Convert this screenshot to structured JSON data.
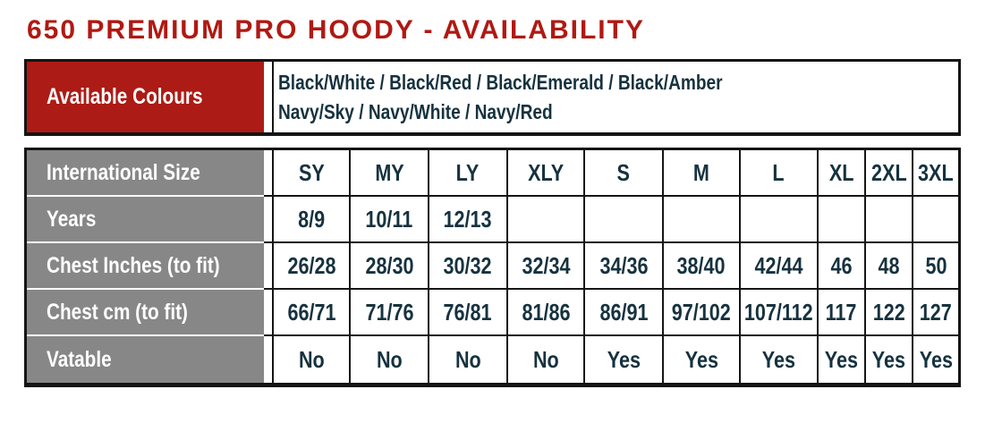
{
  "page": {
    "title": "650 PREMIUM PRO HOODY - AVAILABILITY"
  },
  "colors": {
    "title_red": "#B01912",
    "header_red": "#AC1B15",
    "label_grey": "#878787",
    "text_navy": "#16323F",
    "border_black": "#151515"
  },
  "colours_table": {
    "label": "Available Colours",
    "line1": "Black/White / Black/Red / Black/Emerald / Black/Amber",
    "line2": "Navy/Sky / Navy/White / Navy/Red"
  },
  "size_table": {
    "rows": [
      {
        "label": "International Size",
        "values": [
          "SY",
          "MY",
          "LY",
          "XLY",
          "S",
          "M",
          "L",
          "XL",
          "2XL",
          "3XL"
        ]
      },
      {
        "label": "Years",
        "values": [
          "8/9",
          "10/11",
          "12/13",
          "",
          "",
          "",
          "",
          "",
          "",
          ""
        ]
      },
      {
        "label": "Chest Inches (to fit)",
        "values": [
          "26/28",
          "28/30",
          "30/32",
          "32/34",
          "34/36",
          "38/40",
          "42/44",
          "46",
          "48",
          "50"
        ]
      },
      {
        "label": "Chest cm (to fit)",
        "values": [
          "66/71",
          "71/76",
          "76/81",
          "81/86",
          "86/91",
          "97/102",
          "107/112",
          "117",
          "122",
          "127"
        ]
      },
      {
        "label": "Vatable",
        "values": [
          "No",
          "No",
          "No",
          "No",
          "Yes",
          "Yes",
          "Yes",
          "Yes",
          "Yes",
          "Yes"
        ]
      }
    ]
  }
}
